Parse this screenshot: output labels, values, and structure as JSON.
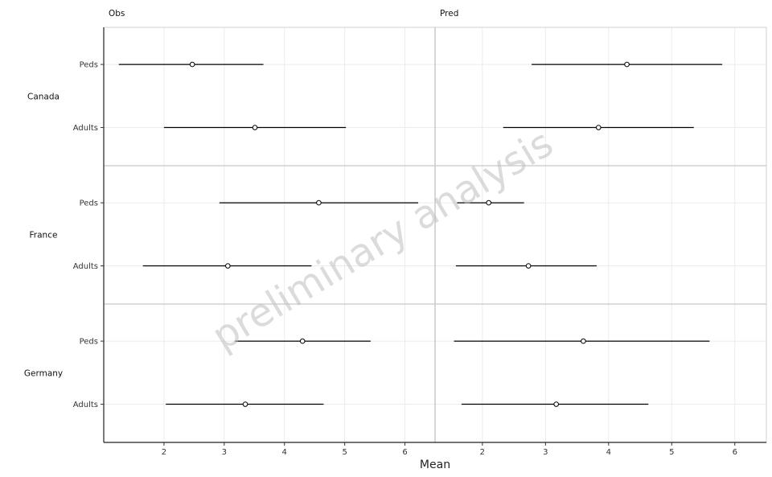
{
  "chart_data": {
    "type": "scatter",
    "subtype": "forest-plot (point estimate with interval)",
    "xlabel": "Mean",
    "ylabel": "",
    "watermark": "preliminary analysis",
    "grid": true,
    "legend": "none",
    "facet_columns": [
      {
        "label": "Obs",
        "xlim": [
          1.0,
          6.5
        ],
        "xticks": [
          2,
          3,
          4,
          5,
          6
        ]
      },
      {
        "label": "Pred",
        "xlim": [
          1.25,
          6.5
        ],
        "xticks": [
          2,
          3,
          4,
          5,
          6
        ]
      }
    ],
    "facet_rows": [
      "Canada",
      "France",
      "Germany"
    ],
    "categories": [
      "Peds",
      "Adults"
    ],
    "panels": [
      {
        "column": "Obs",
        "country": "Canada",
        "rows": [
          {
            "group": "Peds",
            "mean": 2.47,
            "lower": 1.25,
            "upper": 3.65
          },
          {
            "group": "Adults",
            "mean": 3.51,
            "lower": 2.0,
            "upper": 5.02
          }
        ]
      },
      {
        "column": "Obs",
        "country": "France",
        "rows": [
          {
            "group": "Peds",
            "mean": 4.57,
            "lower": 2.92,
            "upper": 6.22
          },
          {
            "group": "Adults",
            "mean": 3.06,
            "lower": 1.65,
            "upper": 4.45
          }
        ]
      },
      {
        "column": "Obs",
        "country": "Germany",
        "rows": [
          {
            "group": "Peds",
            "mean": 4.3,
            "lower": 3.18,
            "upper": 5.43
          },
          {
            "group": "Adults",
            "mean": 3.35,
            "lower": 2.03,
            "upper": 4.65
          }
        ]
      },
      {
        "column": "Pred",
        "country": "Canada",
        "rows": [
          {
            "group": "Peds",
            "mean": 4.29,
            "lower": 2.78,
            "upper": 5.8
          },
          {
            "group": "Adults",
            "mean": 3.84,
            "lower": 2.33,
            "upper": 5.35
          }
        ]
      },
      {
        "column": "Pred",
        "country": "France",
        "rows": [
          {
            "group": "Peds",
            "mean": 2.1,
            "lower": 1.6,
            "upper": 2.66
          },
          {
            "group": "Adults",
            "mean": 2.73,
            "lower": 1.58,
            "upper": 3.81
          }
        ]
      },
      {
        "column": "Pred",
        "country": "Germany",
        "rows": [
          {
            "group": "Peds",
            "mean": 3.6,
            "lower": 1.55,
            "upper": 5.6
          },
          {
            "group": "Adults",
            "mean": 3.17,
            "lower": 1.67,
            "upper": 4.63
          }
        ]
      }
    ]
  }
}
